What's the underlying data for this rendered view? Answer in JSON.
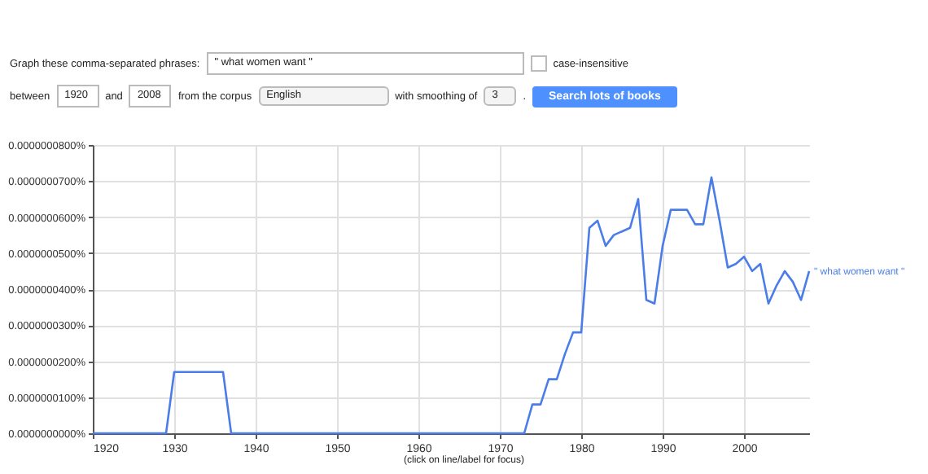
{
  "chart_data": {
    "type": "line",
    "annotations": [
      "Graph these comma-separated phrases:",
      "\" what women want \"",
      "case-insensitive",
      "between",
      "1920",
      "and",
      "2008",
      "from the corpus",
      "English",
      "with smoothing of",
      "3",
      ".",
      "Search lots of books",
      "(click on line/label for focus)"
    ],
    "x": [
      1920,
      1921,
      1922,
      1923,
      1924,
      1925,
      1926,
      1927,
      1928,
      1929,
      1930,
      1931,
      1932,
      1933,
      1934,
      1935,
      1936,
      1937,
      1938,
      1939,
      1940,
      1941,
      1942,
      1943,
      1944,
      1945,
      1946,
      1947,
      1948,
      1949,
      1950,
      1951,
      1952,
      1953,
      1954,
      1955,
      1956,
      1957,
      1958,
      1959,
      1960,
      1961,
      1962,
      1963,
      1964,
      1965,
      1966,
      1967,
      1968,
      1969,
      1970,
      1971,
      1972,
      1973,
      1974,
      1975,
      1976,
      1977,
      1978,
      1979,
      1980,
      1981,
      1982,
      1983,
      1984,
      1985,
      1986,
      1987,
      1988,
      1989,
      1990,
      1991,
      1992,
      1993,
      1994,
      1995,
      1996,
      1997,
      1998,
      1999,
      2000,
      2001,
      2002,
      2003,
      2004,
      2005,
      2006,
      2007,
      2008
    ],
    "series": [
      {
        "name": "\" what women want \"",
        "color": "#4a7de8",
        "values": [
          0,
          0,
          0,
          0,
          0,
          0,
          0,
          0,
          0,
          0,
          1.7e-08,
          1.7e-08,
          1.7e-08,
          1.7e-08,
          1.7e-08,
          1.7e-08,
          1.7e-08,
          0,
          0,
          0,
          0,
          0,
          0,
          0,
          0,
          0,
          0,
          0,
          0,
          0,
          0,
          0,
          0,
          0,
          0,
          0,
          0,
          0,
          0,
          0,
          0,
          0,
          0,
          0,
          0,
          0,
          0,
          0,
          0,
          0,
          0,
          0,
          0,
          0,
          8e-09,
          8e-09,
          1.5e-08,
          1.5e-08,
          2.2e-08,
          2.8e-08,
          2.8e-08,
          5.7e-08,
          5.9e-08,
          5.2e-08,
          5.5e-08,
          5.6e-08,
          5.7e-08,
          6.5e-08,
          3.7e-08,
          3.6e-08,
          5.2e-08,
          6.2e-08,
          6.2e-08,
          6.2e-08,
          5.8e-08,
          5.8e-08,
          7.1e-08,
          5.9e-08,
          4.6e-08,
          4.7e-08,
          4.9e-08,
          4.5e-08,
          4.7e-08,
          3.6e-08,
          4.1e-08,
          4.5e-08,
          4.2e-08,
          3.7e-08,
          4.5e-08
        ]
      }
    ],
    "xlim": [
      1920,
      2008
    ],
    "xticks": [
      1920,
      1930,
      1940,
      1950,
      1960,
      1970,
      1980,
      1990,
      2000
    ],
    "ylim": [
      0,
      8e-08
    ],
    "yticks": [
      {
        "value": 0,
        "label": "0.0000000000%"
      },
      {
        "value": 1e-08,
        "label": "0.0000000100%"
      },
      {
        "value": 2e-08,
        "label": "0.0000000200%"
      },
      {
        "value": 3e-08,
        "label": "0.0000000300%"
      },
      {
        "value": 4e-08,
        "label": "0.0000000400%"
      },
      {
        "value": 5e-08,
        "label": "0.0000000500%"
      },
      {
        "value": 6e-08,
        "label": "0.0000000600%"
      },
      {
        "value": 7e-08,
        "label": "0.0000000700%"
      },
      {
        "value": 8e-08,
        "label": "0.0000000800%"
      }
    ],
    "grid": true
  }
}
